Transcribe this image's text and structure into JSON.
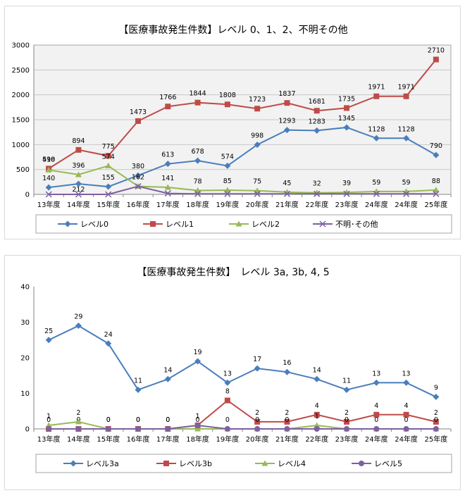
{
  "chart_data": [
    {
      "type": "line",
      "title": "【医療事故発生件数】レベル 0、1、2、不明その他",
      "categories": [
        "13年度",
        "14年度",
        "15年度",
        "16年度",
        "17年度",
        "18年度",
        "19年度",
        "20年度",
        "21年度",
        "22年度",
        "23年度",
        "24年度",
        "24年度",
        "25年度"
      ],
      "ylim": [
        0,
        3000
      ],
      "yticks": [
        0,
        500,
        1000,
        1500,
        2000,
        2500,
        3000
      ],
      "grid": true,
      "legend": "bottom",
      "series": [
        {
          "name": "レベル0",
          "color": "#4a7ebb",
          "marker": "diamond",
          "labels": true,
          "values": [
            140,
            212,
            155,
            380,
            613,
            678,
            574,
            998,
            1293,
            1283,
            1345,
            1128,
            1128,
            790
          ]
        },
        {
          "name": "レベル1",
          "color": "#be4b48",
          "marker": "square",
          "labels": true,
          "values": [
            518,
            894,
            775,
            1473,
            1766,
            1844,
            1808,
            1723,
            1837,
            1681,
            1735,
            1971,
            1971,
            2710
          ]
        },
        {
          "name": "レベル2",
          "color": "#98b954",
          "marker": "triangle",
          "labels": true,
          "values": [
            490,
            396,
            574,
            162,
            141,
            78,
            85,
            75,
            45,
            32,
            39,
            59,
            59,
            88
          ]
        },
        {
          "name": "不明･その他",
          "color": "#7d60a0",
          "marker": "x",
          "labels": false,
          "values": [
            0,
            0,
            0,
            162,
            20,
            10,
            10,
            10,
            10,
            10,
            10,
            10,
            10,
            10
          ]
        }
      ]
    },
    {
      "type": "line",
      "title": "【医療事故発生件数】　レベル 3a, 3b, 4, 5",
      "categories": [
        "13年度",
        "14年度",
        "15年度",
        "16年度",
        "17年度",
        "18年度",
        "19年度",
        "20年度",
        "21年度",
        "22年度",
        "23年度",
        "24年度",
        "24年度",
        "25年度"
      ],
      "ylim": [
        0,
        40
      ],
      "yticks": [
        0,
        10,
        20,
        30,
        40
      ],
      "grid": false,
      "legend": "bottom",
      "series": [
        {
          "name": "レベル3a",
          "color": "#4a7ebb",
          "marker": "diamond",
          "labels": true,
          "values": [
            25,
            29,
            24,
            11,
            14,
            19,
            13,
            17,
            16,
            14,
            11,
            13,
            13,
            9
          ]
        },
        {
          "name": "レベル3b",
          "color": "#be4b48",
          "marker": "square",
          "labels": true,
          "values": [
            0,
            0,
            0,
            0,
            0,
            1,
            8,
            2,
            2,
            4,
            2,
            4,
            4,
            2
          ]
        },
        {
          "name": "レベル4",
          "color": "#98b954",
          "marker": "triangle",
          "labels": true,
          "values": [
            1,
            2,
            0,
            0,
            0,
            0,
            0,
            0,
            0,
            1,
            0,
            0,
            0,
            0
          ]
        },
        {
          "name": "レベル5",
          "color": "#7d60a0",
          "marker": "circle",
          "labels": false,
          "values": [
            0,
            0,
            0,
            0,
            0,
            1,
            0,
            0,
            0,
            0,
            0,
            0,
            0,
            0
          ]
        }
      ]
    }
  ]
}
